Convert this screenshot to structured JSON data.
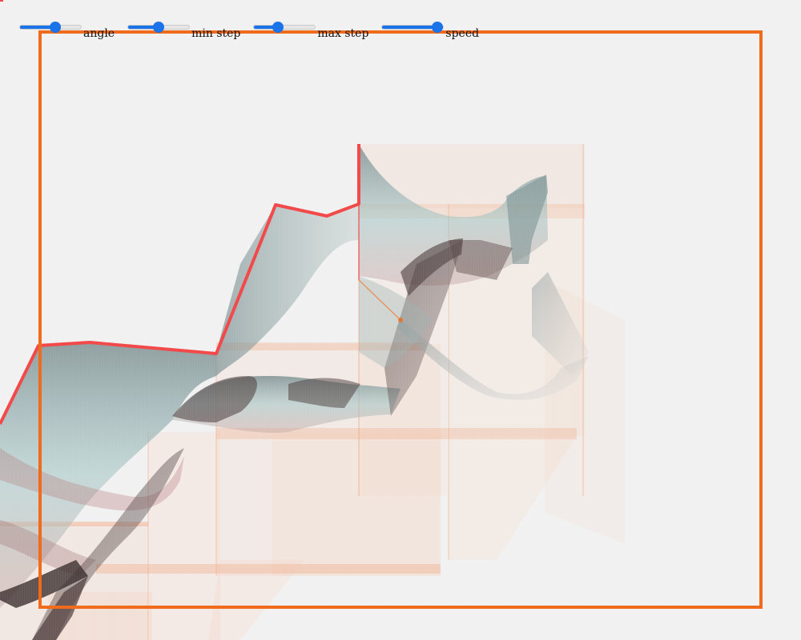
{
  "controls": [
    {
      "key": "angle",
      "label": "angle",
      "value": 0.6
    },
    {
      "key": "min_step",
      "label": "min step",
      "value": 0.5
    },
    {
      "key": "max_step",
      "label": "max step",
      "value": 0.37
    },
    {
      "key": "speed",
      "label": "speed",
      "value": 1.0
    }
  ],
  "colors": {
    "background": "#f2f1f1",
    "frame": "#f06c1c",
    "ridge": "#f2494a",
    "slider_accent": "#1a73e8",
    "box_fill": "#f6c3a6",
    "ribbon_light": "#9fc3c3",
    "ribbon_dark": "#4a3a3a"
  }
}
